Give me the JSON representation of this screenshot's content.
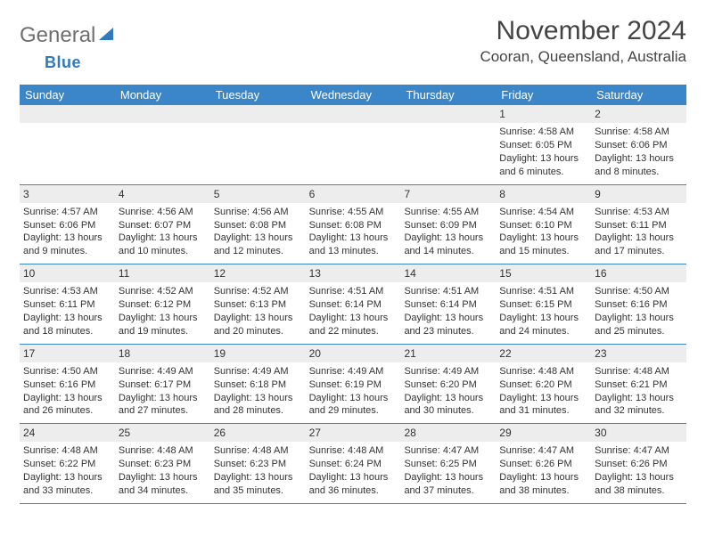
{
  "brand": {
    "text1": "General",
    "text2": "Blue",
    "text1_color": "#6f6f6f",
    "text2_color": "#2f79bd"
  },
  "title": "November 2024",
  "location": "Cooran, Queensland, Australia",
  "colors": {
    "header_bg": "#3a86c8",
    "header_text": "#ffffff",
    "number_bar_bg": "#ededed",
    "border": "#3a86c8",
    "body_text": "#333333",
    "background": "#ffffff"
  },
  "typography": {
    "title_fontsize": 30,
    "location_fontsize": 17,
    "header_fontsize": 13,
    "cell_fontsize": 11
  },
  "day_headers": [
    "Sunday",
    "Monday",
    "Tuesday",
    "Wednesday",
    "Thursday",
    "Friday",
    "Saturday"
  ],
  "weeks": [
    [
      {
        "n": "",
        "empty": true
      },
      {
        "n": "",
        "empty": true
      },
      {
        "n": "",
        "empty": true
      },
      {
        "n": "",
        "empty": true
      },
      {
        "n": "",
        "empty": true
      },
      {
        "n": "1",
        "sunrise": "Sunrise: 4:58 AM",
        "sunset": "Sunset: 6:05 PM",
        "daylight1": "Daylight: 13 hours",
        "daylight2": "and 6 minutes."
      },
      {
        "n": "2",
        "sunrise": "Sunrise: 4:58 AM",
        "sunset": "Sunset: 6:06 PM",
        "daylight1": "Daylight: 13 hours",
        "daylight2": "and 8 minutes."
      }
    ],
    [
      {
        "n": "3",
        "sunrise": "Sunrise: 4:57 AM",
        "sunset": "Sunset: 6:06 PM",
        "daylight1": "Daylight: 13 hours",
        "daylight2": "and 9 minutes."
      },
      {
        "n": "4",
        "sunrise": "Sunrise: 4:56 AM",
        "sunset": "Sunset: 6:07 PM",
        "daylight1": "Daylight: 13 hours",
        "daylight2": "and 10 minutes."
      },
      {
        "n": "5",
        "sunrise": "Sunrise: 4:56 AM",
        "sunset": "Sunset: 6:08 PM",
        "daylight1": "Daylight: 13 hours",
        "daylight2": "and 12 minutes."
      },
      {
        "n": "6",
        "sunrise": "Sunrise: 4:55 AM",
        "sunset": "Sunset: 6:08 PM",
        "daylight1": "Daylight: 13 hours",
        "daylight2": "and 13 minutes."
      },
      {
        "n": "7",
        "sunrise": "Sunrise: 4:55 AM",
        "sunset": "Sunset: 6:09 PM",
        "daylight1": "Daylight: 13 hours",
        "daylight2": "and 14 minutes."
      },
      {
        "n": "8",
        "sunrise": "Sunrise: 4:54 AM",
        "sunset": "Sunset: 6:10 PM",
        "daylight1": "Daylight: 13 hours",
        "daylight2": "and 15 minutes."
      },
      {
        "n": "9",
        "sunrise": "Sunrise: 4:53 AM",
        "sunset": "Sunset: 6:11 PM",
        "daylight1": "Daylight: 13 hours",
        "daylight2": "and 17 minutes."
      }
    ],
    [
      {
        "n": "10",
        "sunrise": "Sunrise: 4:53 AM",
        "sunset": "Sunset: 6:11 PM",
        "daylight1": "Daylight: 13 hours",
        "daylight2": "and 18 minutes."
      },
      {
        "n": "11",
        "sunrise": "Sunrise: 4:52 AM",
        "sunset": "Sunset: 6:12 PM",
        "daylight1": "Daylight: 13 hours",
        "daylight2": "and 19 minutes."
      },
      {
        "n": "12",
        "sunrise": "Sunrise: 4:52 AM",
        "sunset": "Sunset: 6:13 PM",
        "daylight1": "Daylight: 13 hours",
        "daylight2": "and 20 minutes."
      },
      {
        "n": "13",
        "sunrise": "Sunrise: 4:51 AM",
        "sunset": "Sunset: 6:14 PM",
        "daylight1": "Daylight: 13 hours",
        "daylight2": "and 22 minutes."
      },
      {
        "n": "14",
        "sunrise": "Sunrise: 4:51 AM",
        "sunset": "Sunset: 6:14 PM",
        "daylight1": "Daylight: 13 hours",
        "daylight2": "and 23 minutes."
      },
      {
        "n": "15",
        "sunrise": "Sunrise: 4:51 AM",
        "sunset": "Sunset: 6:15 PM",
        "daylight1": "Daylight: 13 hours",
        "daylight2": "and 24 minutes."
      },
      {
        "n": "16",
        "sunrise": "Sunrise: 4:50 AM",
        "sunset": "Sunset: 6:16 PM",
        "daylight1": "Daylight: 13 hours",
        "daylight2": "and 25 minutes."
      }
    ],
    [
      {
        "n": "17",
        "sunrise": "Sunrise: 4:50 AM",
        "sunset": "Sunset: 6:16 PM",
        "daylight1": "Daylight: 13 hours",
        "daylight2": "and 26 minutes."
      },
      {
        "n": "18",
        "sunrise": "Sunrise: 4:49 AM",
        "sunset": "Sunset: 6:17 PM",
        "daylight1": "Daylight: 13 hours",
        "daylight2": "and 27 minutes."
      },
      {
        "n": "19",
        "sunrise": "Sunrise: 4:49 AM",
        "sunset": "Sunset: 6:18 PM",
        "daylight1": "Daylight: 13 hours",
        "daylight2": "and 28 minutes."
      },
      {
        "n": "20",
        "sunrise": "Sunrise: 4:49 AM",
        "sunset": "Sunset: 6:19 PM",
        "daylight1": "Daylight: 13 hours",
        "daylight2": "and 29 minutes."
      },
      {
        "n": "21",
        "sunrise": "Sunrise: 4:49 AM",
        "sunset": "Sunset: 6:20 PM",
        "daylight1": "Daylight: 13 hours",
        "daylight2": "and 30 minutes."
      },
      {
        "n": "22",
        "sunrise": "Sunrise: 4:48 AM",
        "sunset": "Sunset: 6:20 PM",
        "daylight1": "Daylight: 13 hours",
        "daylight2": "and 31 minutes."
      },
      {
        "n": "23",
        "sunrise": "Sunrise: 4:48 AM",
        "sunset": "Sunset: 6:21 PM",
        "daylight1": "Daylight: 13 hours",
        "daylight2": "and 32 minutes."
      }
    ],
    [
      {
        "n": "24",
        "sunrise": "Sunrise: 4:48 AM",
        "sunset": "Sunset: 6:22 PM",
        "daylight1": "Daylight: 13 hours",
        "daylight2": "and 33 minutes."
      },
      {
        "n": "25",
        "sunrise": "Sunrise: 4:48 AM",
        "sunset": "Sunset: 6:23 PM",
        "daylight1": "Daylight: 13 hours",
        "daylight2": "and 34 minutes."
      },
      {
        "n": "26",
        "sunrise": "Sunrise: 4:48 AM",
        "sunset": "Sunset: 6:23 PM",
        "daylight1": "Daylight: 13 hours",
        "daylight2": "and 35 minutes."
      },
      {
        "n": "27",
        "sunrise": "Sunrise: 4:48 AM",
        "sunset": "Sunset: 6:24 PM",
        "daylight1": "Daylight: 13 hours",
        "daylight2": "and 36 minutes."
      },
      {
        "n": "28",
        "sunrise": "Sunrise: 4:47 AM",
        "sunset": "Sunset: 6:25 PM",
        "daylight1": "Daylight: 13 hours",
        "daylight2": "and 37 minutes."
      },
      {
        "n": "29",
        "sunrise": "Sunrise: 4:47 AM",
        "sunset": "Sunset: 6:26 PM",
        "daylight1": "Daylight: 13 hours",
        "daylight2": "and 38 minutes."
      },
      {
        "n": "30",
        "sunrise": "Sunrise: 4:47 AM",
        "sunset": "Sunset: 6:26 PM",
        "daylight1": "Daylight: 13 hours",
        "daylight2": "and 38 minutes."
      }
    ]
  ]
}
